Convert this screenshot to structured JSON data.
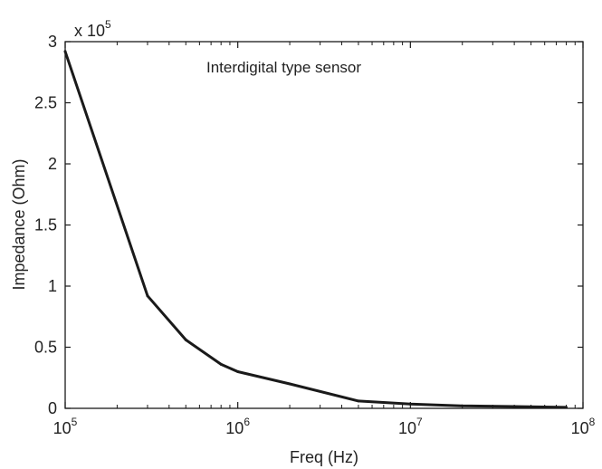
{
  "chart_data": {
    "type": "line",
    "annotation": "Interdigital type sensor",
    "xlabel": "Freq (Hz)",
    "ylabel": "Impedance (Ohm)",
    "x_scale": "log",
    "xlim": [
      100000,
      100000000
    ],
    "ylim": [
      0,
      300000
    ],
    "y_multiplier": {
      "base": "x 10",
      "exponent": "5"
    },
    "x_ticks": [
      {
        "value": 100000,
        "base": "10",
        "exp": "5"
      },
      {
        "value": 1000000,
        "base": "10",
        "exp": "6"
      },
      {
        "value": 10000000,
        "base": "10",
        "exp": "7"
      },
      {
        "value": 100000000,
        "base": "10",
        "exp": "8"
      }
    ],
    "y_ticks": [
      {
        "value": 0,
        "label": "0"
      },
      {
        "value": 50000,
        "label": "0.5"
      },
      {
        "value": 100000,
        "label": "1"
      },
      {
        "value": 150000,
        "label": "1.5"
      },
      {
        "value": 200000,
        "label": "2"
      },
      {
        "value": 250000,
        "label": "2.5"
      },
      {
        "value": 300000,
        "label": "3"
      }
    ],
    "series": [
      {
        "x": [
          100000,
          300000,
          500000,
          800000,
          1000000,
          2000000,
          5000000,
          10000000,
          20000000,
          40000000,
          80000000
        ],
        "y": [
          292000,
          92000,
          56000,
          36000,
          30000,
          20000,
          6000,
          3500,
          2000,
          1500,
          800
        ],
        "color": "#1a1a1a"
      }
    ],
    "grid": false,
    "legend": "none"
  }
}
